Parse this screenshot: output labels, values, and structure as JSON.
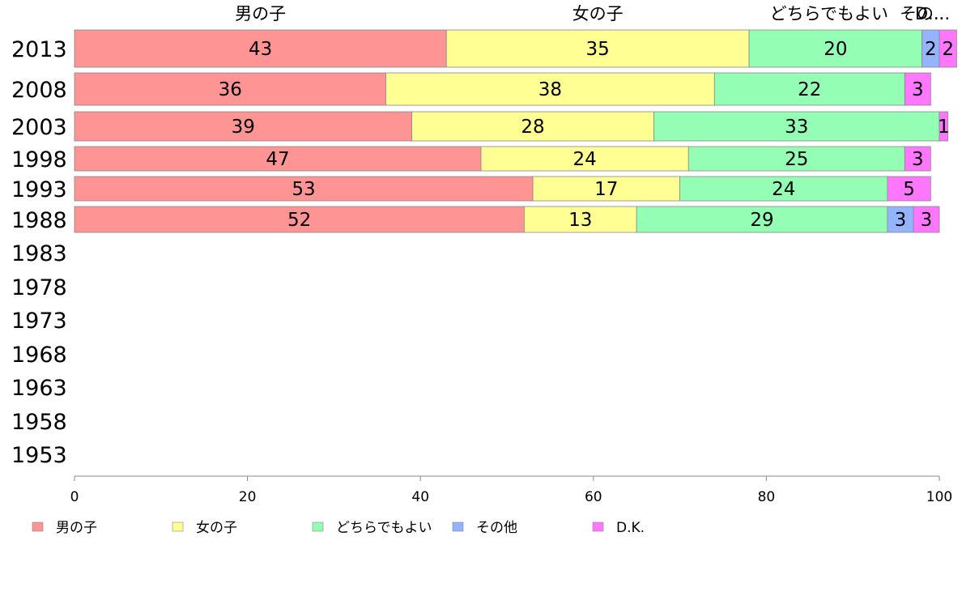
{
  "chart_data": {
    "type": "bar",
    "orientation": "horizontal",
    "stacked": true,
    "title": "",
    "xlabel": "",
    "ylabel": "",
    "xlim": [
      0,
      100
    ],
    "x_ticks": [
      0,
      20,
      40,
      60,
      80,
      100
    ],
    "grid": false,
    "legend_position": "bottom",
    "categories": [
      "2013",
      "2008",
      "2003",
      "1998",
      "1993",
      "1988",
      "1983",
      "1978",
      "1973",
      "1968",
      "1963",
      "1958",
      "1953"
    ],
    "top_headers": [
      "男の子",
      "女の子",
      "どちらでもよい",
      "その...",
      "D..."
    ],
    "series": [
      {
        "name": "男の子",
        "color": "#ff9494",
        "values": [
          43,
          36,
          39,
          47,
          53,
          52,
          null,
          null,
          null,
          null,
          null,
          null,
          null
        ]
      },
      {
        "name": "女の子",
        "color": "#ffff94",
        "values": [
          35,
          38,
          28,
          24,
          17,
          13,
          null,
          null,
          null,
          null,
          null,
          null,
          null
        ]
      },
      {
        "name": "どちらでもよい",
        "color": "#94ffb4",
        "values": [
          20,
          22,
          33,
          25,
          24,
          29,
          null,
          null,
          null,
          null,
          null,
          null,
          null
        ]
      },
      {
        "name": "その他",
        "color": "#94b4ff",
        "values": [
          2,
          0,
          0,
          0,
          0,
          3,
          null,
          null,
          null,
          null,
          null,
          null,
          null
        ]
      },
      {
        "name": "D.K.",
        "color": "#ff77ff",
        "values": [
          2,
          3,
          1,
          3,
          5,
          3,
          null,
          null,
          null,
          null,
          null,
          null,
          null
        ]
      }
    ]
  }
}
